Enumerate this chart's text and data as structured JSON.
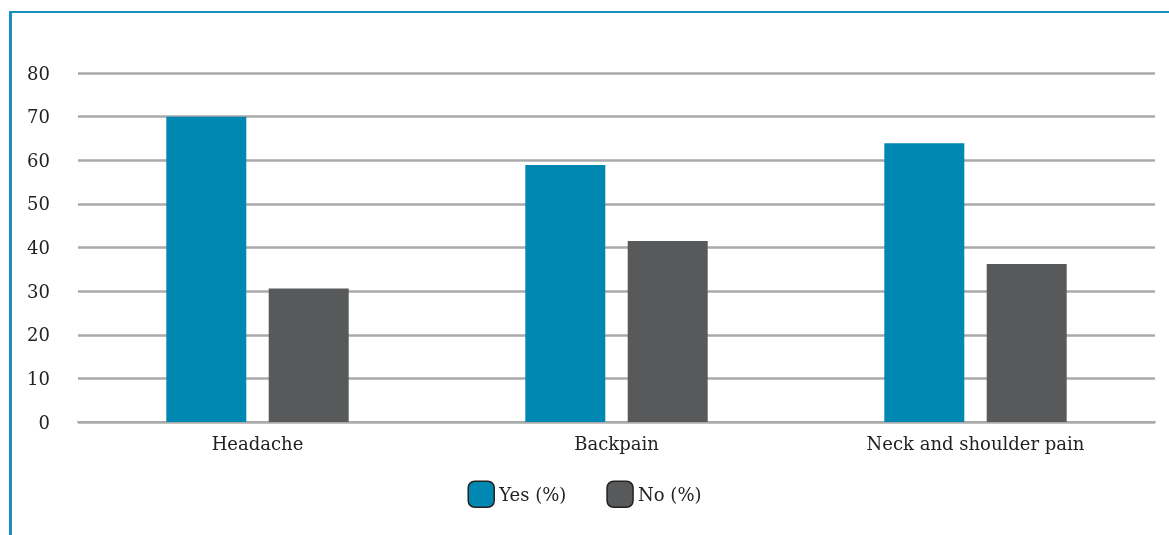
{
  "chart_data": {
    "type": "bar",
    "categories": [
      "Headache",
      "Backpain",
      "Neck and shoulder pain"
    ],
    "series": [
      {
        "name": "Yes (%)",
        "color": "#0088b2",
        "values": [
          70,
          58.9,
          63.9
        ]
      },
      {
        "name": "No (%)",
        "color": "#58595b",
        "values": [
          30.6,
          41.5,
          36.2
        ]
      }
    ],
    "ylim": [
      0,
      80
    ],
    "yticks": [
      0,
      10,
      20,
      30,
      40,
      50,
      60,
      70,
      80
    ],
    "grid": "y",
    "legend": "bottom"
  }
}
